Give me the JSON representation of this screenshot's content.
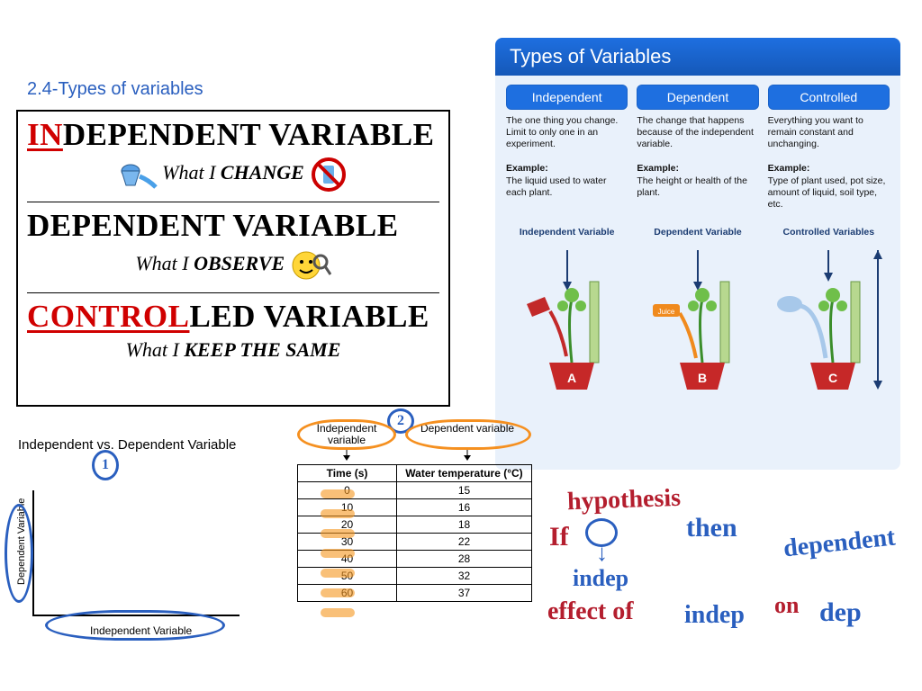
{
  "page": {
    "title": "2.4-Types of variables",
    "title_color": "#2a5fbf"
  },
  "definitions": {
    "independent": {
      "prefix": "IN",
      "rest": "DEPENDENT VARIABLE",
      "sub_prefix": "What I ",
      "sub_bold": "CHANGE"
    },
    "dependent": {
      "prefix": "",
      "rest": "DEPENDENT VARIABLE",
      "sub_prefix": "What I ",
      "sub_bold": "OBSERVE"
    },
    "controlled": {
      "prefix": "CONTROL",
      "rest": "LED VARIABLE",
      "sub_prefix": "What I ",
      "sub_bold": "KEEP THE SAME"
    }
  },
  "panel": {
    "title": "Types of Variables",
    "title_bg": "#1e6fe0",
    "pill_colors": {
      "independent": "#1e6fe0",
      "dependent": "#1e6fe0",
      "controlled": "#1e6fe0"
    },
    "cols": [
      {
        "name": "Independent",
        "body": "The one thing you change. Limit to only one in an experiment.",
        "ex": "The liquid used to water each plant.",
        "plant_label": "Independent Variable",
        "pot_letter": "A",
        "liquid_color": "#c22929"
      },
      {
        "name": "Dependent",
        "body": "The change that happens because of the independent variable.",
        "ex": "The height or health of the plant.",
        "plant_label": "Dependent Variable",
        "pot_letter": "B",
        "liquid_color": "#f08a1d"
      },
      {
        "name": "Controlled",
        "body": "Everything you want to remain constant and unchanging.",
        "ex": "Type of plant used, pot size, amount of liquid, soil type, etc.",
        "plant_label": "Controlled Variables",
        "pot_letter": "C",
        "liquid_color": "#a7c8ea"
      }
    ],
    "example_label": "Example:"
  },
  "graph": {
    "title": "Independent vs. Dependent Variable",
    "y_label": "Dependent Variable",
    "x_label": "Independent Variable"
  },
  "table": {
    "header_iv": "Independent variable",
    "header_dv": "Dependent variable",
    "col1": "Time (s)",
    "col2": "Water temperature (°C)",
    "rows": [
      {
        "t": "0",
        "w": "15"
      },
      {
        "t": "10",
        "w": "16"
      },
      {
        "t": "20",
        "w": "18"
      },
      {
        "t": "30",
        "w": "22"
      },
      {
        "t": "40",
        "w": "28"
      },
      {
        "t": "50",
        "w": "32"
      },
      {
        "t": "60",
        "w": "37"
      }
    ]
  },
  "annotations": {
    "n1": "1",
    "n2": "2",
    "hypothesis": "hypothesis",
    "if": "If",
    "arrow": "↓",
    "indep": "indep",
    "then": "then",
    "dependent": "dependent",
    "effect_of": "effect of",
    "indep2": "indep",
    "on": "on",
    "dep": "dep"
  },
  "colors": {
    "blue_ink": "#2a5fbf",
    "red_ink": "#b41e2e",
    "orange": "#f59020"
  }
}
